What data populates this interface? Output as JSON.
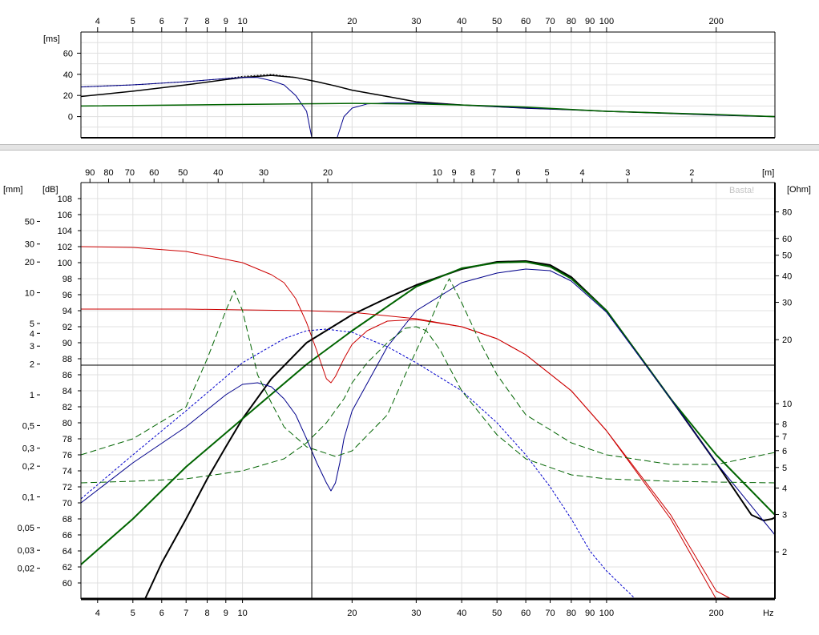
{
  "chart_data": [
    {
      "type": "line",
      "xscale": "log",
      "xlim": [
        3.6,
        290
      ],
      "ylim": [
        -20,
        80
      ],
      "ylabel": "[ms]",
      "grid": true,
      "x_ticks": [
        4,
        5,
        6,
        7,
        8,
        9,
        10,
        20,
        30,
        40,
        50,
        60,
        70,
        80,
        90,
        100,
        200
      ],
      "y_ticks": [
        0,
        20,
        40,
        60
      ],
      "cursor_x": 15.5,
      "series": [
        {
          "color": "#000000",
          "width": 1.5,
          "x": [
            3.6,
            5,
            7,
            9,
            10,
            12,
            14,
            16,
            18,
            20,
            25,
            30,
            40,
            60,
            80,
            100,
            150,
            200,
            290
          ],
          "y": [
            19,
            24,
            30,
            35,
            37,
            39,
            37,
            33,
            29,
            25,
            19,
            14,
            11,
            8,
            6.5,
            5,
            3,
            1.5,
            0
          ]
        },
        {
          "color": "#000000",
          "width": 1,
          "dash": "2,2",
          "x": [
            3.6,
            5,
            7,
            9,
            10,
            12,
            14,
            16,
            18,
            20,
            25,
            30,
            40,
            60,
            80,
            100,
            150,
            200,
            290
          ],
          "y": [
            28,
            30,
            33,
            36,
            38,
            40,
            37,
            33,
            29,
            25,
            19,
            14,
            11,
            8,
            6.5,
            5,
            3,
            1.5,
            0
          ]
        },
        {
          "color": "#00008b",
          "width": 1,
          "x": [
            3.6,
            5,
            7,
            9,
            10,
            11,
            12,
            13,
            14,
            15,
            15.5,
            16,
            17.5,
            18.2,
            19,
            20,
            22,
            25,
            30,
            40,
            60,
            80,
            100,
            150,
            200,
            290
          ],
          "y": [
            28,
            30,
            33,
            36,
            37,
            37,
            34,
            30,
            20,
            5,
            -20,
            -20,
            -20,
            -20,
            0,
            8,
            12,
            13,
            13,
            11,
            8,
            6.5,
            5,
            3,
            1.5,
            0
          ]
        },
        {
          "color": "#006400",
          "width": 1.5,
          "x": [
            3.6,
            10,
            20,
            30,
            40,
            60,
            100,
            200,
            290
          ],
          "y": [
            10,
            11.5,
            12.5,
            12,
            11,
            9,
            5,
            2,
            0
          ]
        }
      ]
    },
    {
      "type": "line",
      "xscale": "log",
      "xlim": [
        3.6,
        290
      ],
      "xlabel": "Hz",
      "ylabel": "[dB]",
      "ylim": [
        58,
        110
      ],
      "grid": true,
      "x_ticks": [
        4,
        5,
        6,
        7,
        8,
        9,
        10,
        20,
        30,
        40,
        50,
        60,
        70,
        80,
        90,
        100,
        200
      ],
      "y_ticks": [
        60,
        62,
        64,
        66,
        68,
        70,
        72,
        74,
        76,
        78,
        80,
        82,
        84,
        86,
        88,
        90,
        92,
        94,
        96,
        98,
        100,
        102,
        104,
        106,
        108
      ],
      "secondary_axes": {
        "mm": {
          "label": "[mm]",
          "ticks": [
            "50",
            "30",
            "20",
            "10",
            "5",
            "4",
            "3",
            "2",
            "1",
            "0,5",
            "0,3",
            "0,2",
            "0,1",
            "0,05",
            "0,03",
            "0,02"
          ],
          "values": [
            50,
            30,
            20,
            10,
            5,
            4,
            3,
            2,
            1,
            0.5,
            0.3,
            0.2,
            0.1,
            0.05,
            0.03,
            0.02
          ],
          "range": [
            0.01,
            120
          ]
        },
        "ohm": {
          "label": "[Ohm]",
          "ticks": [
            "80",
            "60",
            "50",
            "40",
            "30",
            "20",
            "10",
            "8",
            "7",
            "6",
            "5",
            "4",
            "3",
            "2"
          ],
          "values": [
            80,
            60,
            50,
            40,
            30,
            20,
            10,
            8,
            7,
            6,
            5,
            4,
            3,
            2
          ],
          "range": [
            1.2,
            110
          ]
        },
        "m": {
          "label": "[m]",
          "ticks": [
            "90",
            "80",
            "70",
            "60",
            "50",
            "40",
            "30",
            "20",
            "10",
            "9",
            "8",
            "7",
            "6",
            "5",
            "4",
            "3",
            "2"
          ],
          "values": [
            90,
            80,
            70,
            60,
            50,
            40,
            30,
            20,
            10,
            9,
            8,
            7,
            6,
            5,
            4,
            3,
            2
          ]
        }
      },
      "watermark": "Basta!",
      "cursor_x": 15.5,
      "cursor_y": 87.2,
      "series": [
        {
          "color": "#000000",
          "width": 2,
          "x": [
            5.4,
            6,
            7,
            8,
            9,
            10,
            12,
            15,
            20,
            25,
            30,
            40,
            50,
            60,
            70,
            80,
            100,
            150,
            200,
            250,
            270,
            285,
            290
          ],
          "y": [
            58,
            62.5,
            68,
            73,
            77,
            80.5,
            85.5,
            90,
            93.5,
            95.6,
            97.2,
            99.2,
            100.1,
            100.2,
            99.7,
            98.2,
            94,
            83,
            75,
            68.5,
            67.8,
            68,
            68.2
          ]
        },
        {
          "color": "#006400",
          "width": 2,
          "x": [
            3.6,
            5,
            7,
            10,
            15,
            20,
            30,
            40,
            50,
            60,
            70,
            80,
            100,
            150,
            200,
            290
          ],
          "y": [
            62.3,
            68,
            74.5,
            80.5,
            87.3,
            91.5,
            97,
            99.3,
            100,
            100.1,
            99.5,
            98,
            94,
            83,
            76,
            68.5
          ]
        },
        {
          "color": "#00008b",
          "width": 1,
          "x": [
            3.6,
            5,
            7,
            9,
            10,
            11,
            12,
            13,
            14,
            15,
            16,
            17,
            17.5,
            18,
            18.5,
            19,
            20,
            25,
            30,
            40,
            50,
            60,
            70,
            80,
            100,
            150,
            200,
            290
          ],
          "y": [
            70,
            75,
            79.5,
            83.5,
            84.8,
            85,
            84.5,
            83,
            81,
            78,
            75,
            72.5,
            71.5,
            72.5,
            75,
            78,
            81.5,
            89.5,
            94,
            97.5,
            98.7,
            99.2,
            99,
            97.7,
            93.8,
            83,
            75,
            66
          ]
        },
        {
          "color": "#0000cd",
          "width": 1,
          "dash": "3,2",
          "x": [
            3.6,
            5,
            7,
            10,
            13,
            15,
            17,
            20,
            25,
            30,
            40,
            50,
            60,
            70,
            80,
            90,
            100,
            120,
            150
          ],
          "y": [
            70.5,
            76,
            81.5,
            87.5,
            90.5,
            91.5,
            91.7,
            91.3,
            89.5,
            87.5,
            84,
            80,
            76,
            72,
            68,
            64,
            61.5,
            58,
            58
          ]
        },
        {
          "color": "#cc0000",
          "width": 1,
          "x": [
            3.6,
            5,
            7,
            10,
            12,
            13,
            14,
            15,
            16,
            17,
            17.5,
            18,
            19,
            20,
            22,
            25,
            30,
            40,
            50,
            60,
            80,
            100,
            150,
            200,
            230,
            290
          ],
          "y": [
            102,
            101.9,
            101.4,
            100,
            98.5,
            97.5,
            95.5,
            92.5,
            89,
            85.5,
            85,
            85.8,
            88,
            89.8,
            91.5,
            92.7,
            92.9,
            92,
            90.5,
            88.5,
            84,
            79,
            68,
            58,
            58,
            58
          ]
        },
        {
          "color": "#cc0000",
          "width": 1,
          "x": [
            3.6,
            5,
            7,
            10,
            15,
            20,
            30,
            40,
            50,
            60,
            80,
            100,
            150,
            200,
            220,
            290
          ],
          "y": [
            94.2,
            94.2,
            94.2,
            94.1,
            94,
            93.8,
            93,
            92,
            90.5,
            88.5,
            84,
            79,
            68.5,
            59,
            58,
            58
          ]
        },
        {
          "color": "#006400",
          "width": 1,
          "dash": "8,4",
          "x": [
            3.6,
            5,
            7,
            8,
            9,
            9.5,
            10,
            10.5,
            11,
            12,
            13,
            15,
            18,
            20,
            25,
            28,
            30,
            33,
            36,
            37,
            40,
            45,
            50,
            60,
            80,
            100,
            150,
            200,
            290
          ],
          "y": [
            76,
            78,
            82,
            88,
            94,
            96.5,
            94,
            90,
            86,
            82.5,
            79.5,
            77,
            75.8,
            76.5,
            81,
            86,
            89,
            93,
            97,
            98,
            95,
            90,
            86,
            81,
            77.5,
            76,
            74.8,
            74.8,
            76.3
          ]
        },
        {
          "color": "#006400",
          "width": 1,
          "dash": "8,4",
          "x": [
            3.6,
            5,
            7,
            10,
            13,
            15,
            17,
            19,
            20,
            22,
            25,
            28,
            30,
            32,
            35,
            40,
            50,
            60,
            80,
            100,
            150,
            200,
            290
          ],
          "y": [
            72.5,
            72.7,
            73,
            74,
            75.5,
            77.5,
            80,
            83,
            85,
            87.5,
            90,
            91.8,
            92,
            91.5,
            89,
            84,
            78.5,
            75.5,
            73.5,
            73,
            72.7,
            72.6,
            72.5
          ]
        }
      ]
    }
  ]
}
